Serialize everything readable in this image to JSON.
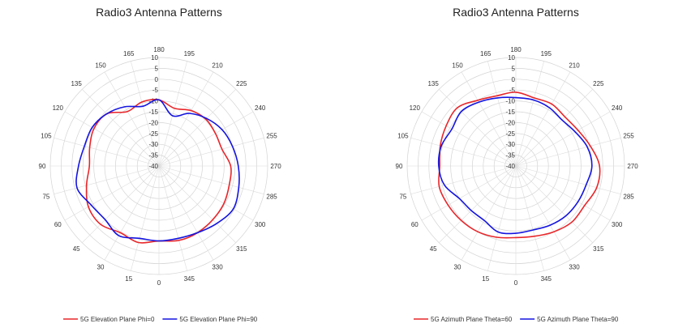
{
  "chart_data": [
    {
      "type": "polar-line",
      "title": "Radio3 Antenna Patterns",
      "angle_ticks": [
        0,
        15,
        30,
        45,
        60,
        75,
        90,
        105,
        120,
        135,
        150,
        165,
        180,
        195,
        210,
        225,
        240,
        255,
        270,
        285,
        300,
        315,
        330,
        345
      ],
      "angle_zero": "bottom",
      "angle_direction": "counterclockwise",
      "radial_ticks": [
        -40,
        -35,
        -30,
        -25,
        -20,
        -15,
        -10,
        -5,
        0,
        5,
        10
      ],
      "rlim": [
        -40,
        10
      ],
      "grid": true,
      "legend_position": "bottom",
      "angles": [
        0,
        15,
        30,
        45,
        60,
        75,
        90,
        105,
        120,
        135,
        150,
        165,
        180,
        195,
        210,
        225,
        240,
        255,
        270,
        285,
        300,
        315,
        330,
        345
      ],
      "series": [
        {
          "name": "5G Elevation Plane Phi=0",
          "color": "#e8262a",
          "values": [
            -5.5,
            -3.5,
            -4.5,
            -2.0,
            -2.5,
            -5.5,
            -8.0,
            -7.0,
            -5.5,
            -6.0,
            -11.0,
            -9.5,
            -9.5,
            -12.5,
            -10.5,
            -9.5,
            -10.0,
            -10.0,
            -7.0,
            -6.5,
            -5.5,
            -5.0,
            -4.5,
            -4.5
          ]
        },
        {
          "name": "5G Elevation Plane Phi=90",
          "color": "#1414e0",
          "values": [
            -5.5,
            -5.5,
            -3.0,
            -5.0,
            -4.0,
            -1.0,
            -3.0,
            -4.5,
            -4.5,
            -6.0,
            -8.5,
            -11.5,
            -9.5,
            -16.0,
            -12.0,
            -9.0,
            -6.5,
            -5.0,
            -3.5,
            -2.0,
            -0.5,
            -2.5,
            -4.5,
            -5.5
          ]
        }
      ]
    },
    {
      "type": "polar-line",
      "title": "Radio3 Antenna Patterns",
      "angle_ticks": [
        0,
        15,
        30,
        45,
        60,
        75,
        90,
        105,
        120,
        135,
        150,
        165,
        180,
        195,
        210,
        225,
        240,
        255,
        270,
        285,
        300,
        315,
        330,
        345
      ],
      "angle_zero": "bottom",
      "angle_direction": "counterclockwise",
      "radial_ticks": [
        -40,
        -35,
        -30,
        -25,
        -20,
        -15,
        -10,
        -5,
        0,
        5,
        10
      ],
      "rlim": [
        -40,
        10
      ],
      "grid": true,
      "legend_position": "bottom",
      "angles": [
        0,
        15,
        30,
        45,
        60,
        75,
        90,
        105,
        120,
        135,
        150,
        165,
        180,
        195,
        210,
        225,
        240,
        255,
        270,
        285,
        300,
        315,
        330,
        345
      ],
      "series": [
        {
          "name": "5G Azimuth Plane Theta=60",
          "color": "#e8262a",
          "values": [
            -7.0,
            -6.0,
            -5.0,
            -4.5,
            -4.0,
            -3.5,
            -5.0,
            -4.0,
            -3.0,
            -2.0,
            -5.0,
            -6.5,
            -6.0,
            -7.5,
            -7.0,
            -8.0,
            -7.0,
            -4.5,
            -1.5,
            -1.5,
            -3.5,
            -3.5,
            -5.0,
            -6.5
          ]
        },
        {
          "name": "5G Azimuth Plane Theta=90",
          "color": "#1414e0",
          "values": [
            -9.0,
            -8.5,
            -11.0,
            -11.0,
            -10.0,
            -6.0,
            -4.5,
            -4.5,
            -6.0,
            -4.5,
            -6.0,
            -7.5,
            -8.5,
            -8.5,
            -9.0,
            -10.0,
            -8.5,
            -6.0,
            -5.0,
            -6.5,
            -7.0,
            -7.5,
            -8.5,
            -9.5
          ]
        }
      ]
    }
  ]
}
